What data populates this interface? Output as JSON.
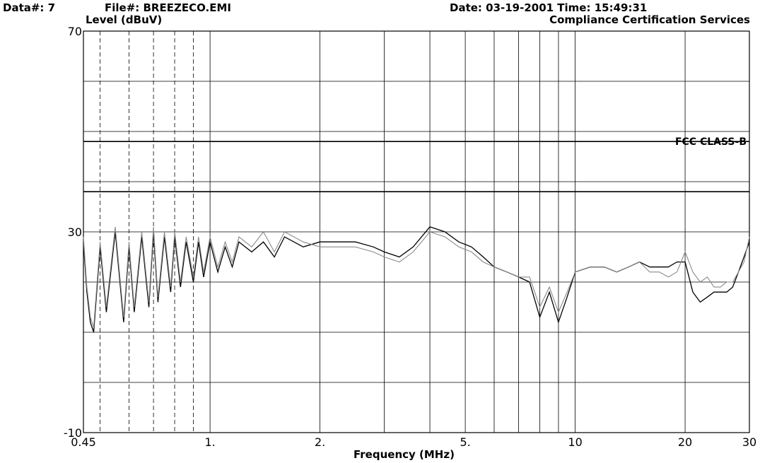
{
  "header": {
    "data_no": "Data#: 7",
    "file": "File#: BREEZECO.EMI",
    "date_time": "Date: 03-19-2001  Time: 15:49:31",
    "company": "Compliance Certification Services"
  },
  "colors": {
    "ink": "#000000",
    "grid": "#000000",
    "trace_light": "#8a8a8a"
  },
  "chart_data": {
    "type": "line",
    "title": "",
    "ylabel": "Level (dBuV)",
    "xlabel": "Frequency (MHz)",
    "x_scale": "log",
    "xlim": [
      0.45,
      30
    ],
    "ylim": [
      -10,
      70
    ],
    "x_ticks": [
      {
        "value": 0.45,
        "label": "0.45"
      },
      {
        "value": 1,
        "label": "1."
      },
      {
        "value": 2,
        "label": "2."
      },
      {
        "value": 5,
        "label": "5."
      },
      {
        "value": 10,
        "label": "10"
      },
      {
        "value": 20,
        "label": "20"
      },
      {
        "value": 30,
        "label": "30"
      }
    ],
    "y_ticks": [
      {
        "value": 70,
        "label": "70"
      },
      {
        "value": 30,
        "label": "30"
      },
      {
        "value": -10,
        "label": "-10"
      }
    ],
    "grid": true,
    "limit_lines": [
      {
        "name": "FCC CLASS-B",
        "y": 48
      },
      {
        "name": "",
        "y": 38
      }
    ],
    "series": [
      {
        "style": "dark",
        "x": [
          0.45,
          0.46,
          0.47,
          0.48,
          0.5,
          0.52,
          0.55,
          0.58,
          0.6,
          0.62,
          0.65,
          0.68,
          0.7,
          0.72,
          0.75,
          0.78,
          0.8,
          0.83,
          0.86,
          0.9,
          0.93,
          0.96,
          1.0,
          1.05,
          1.1,
          1.15,
          1.2,
          1.3,
          1.4,
          1.5,
          1.6,
          1.8,
          2.0,
          2.2,
          2.5,
          2.8,
          3.0,
          3.3,
          3.6,
          4.0,
          4.4,
          4.8,
          5.2,
          5.6,
          6.0,
          6.5,
          7.0,
          7.5,
          8.0,
          8.5,
          9.0,
          9.5,
          10,
          11,
          12,
          13,
          14,
          15,
          16,
          17,
          18,
          19,
          20,
          21,
          22,
          23,
          24,
          25,
          26,
          27,
          28,
          29,
          30
        ],
        "y": [
          28,
          18,
          12,
          10,
          27,
          14,
          30,
          12,
          27,
          14,
          29,
          15,
          30,
          16,
          29,
          18,
          29,
          19,
          28,
          20,
          28,
          21,
          28,
          22,
          27,
          23,
          28,
          26,
          28,
          25,
          29,
          27,
          28,
          28,
          28,
          27,
          26,
          25,
          27,
          31,
          30,
          28,
          27,
          25,
          23,
          22,
          21,
          20,
          13,
          18,
          12,
          17,
          22,
          23,
          23,
          22,
          23,
          24,
          23,
          23,
          23,
          24,
          24,
          18,
          16,
          17,
          18,
          18,
          18,
          19,
          22,
          25,
          28
        ]
      },
      {
        "style": "light",
        "x": [
          0.45,
          0.46,
          0.47,
          0.48,
          0.5,
          0.52,
          0.55,
          0.58,
          0.6,
          0.62,
          0.65,
          0.68,
          0.7,
          0.72,
          0.75,
          0.78,
          0.8,
          0.83,
          0.86,
          0.9,
          0.93,
          0.96,
          1.0,
          1.05,
          1.1,
          1.15,
          1.2,
          1.3,
          1.4,
          1.5,
          1.6,
          1.8,
          2.0,
          2.2,
          2.5,
          2.8,
          3.0,
          3.3,
          3.6,
          4.0,
          4.4,
          4.8,
          5.2,
          5.6,
          6.0,
          6.5,
          7.0,
          7.5,
          8.0,
          8.5,
          9.0,
          9.5,
          10,
          11,
          12,
          13,
          14,
          15,
          16,
          17,
          18,
          19,
          20,
          21,
          22,
          23,
          24,
          25,
          26,
          27,
          28,
          29,
          30
        ],
        "y": [
          29,
          19,
          13,
          11,
          28,
          15,
          31,
          13,
          28,
          15,
          30,
          16,
          31,
          17,
          30,
          19,
          30,
          20,
          29,
          21,
          29,
          22,
          29,
          23,
          28,
          24,
          29,
          27,
          30,
          26,
          30,
          28,
          27,
          27,
          27,
          26,
          25,
          24,
          26,
          30,
          29,
          27,
          26,
          24,
          23,
          22,
          21,
          21,
          15,
          19,
          14,
          18,
          22,
          23,
          23,
          22,
          23,
          24,
          22,
          22,
          21,
          22,
          26,
          22,
          20,
          21,
          19,
          19,
          20,
          20,
          22,
          24,
          29
        ]
      }
    ],
    "legend_placement": "none"
  }
}
